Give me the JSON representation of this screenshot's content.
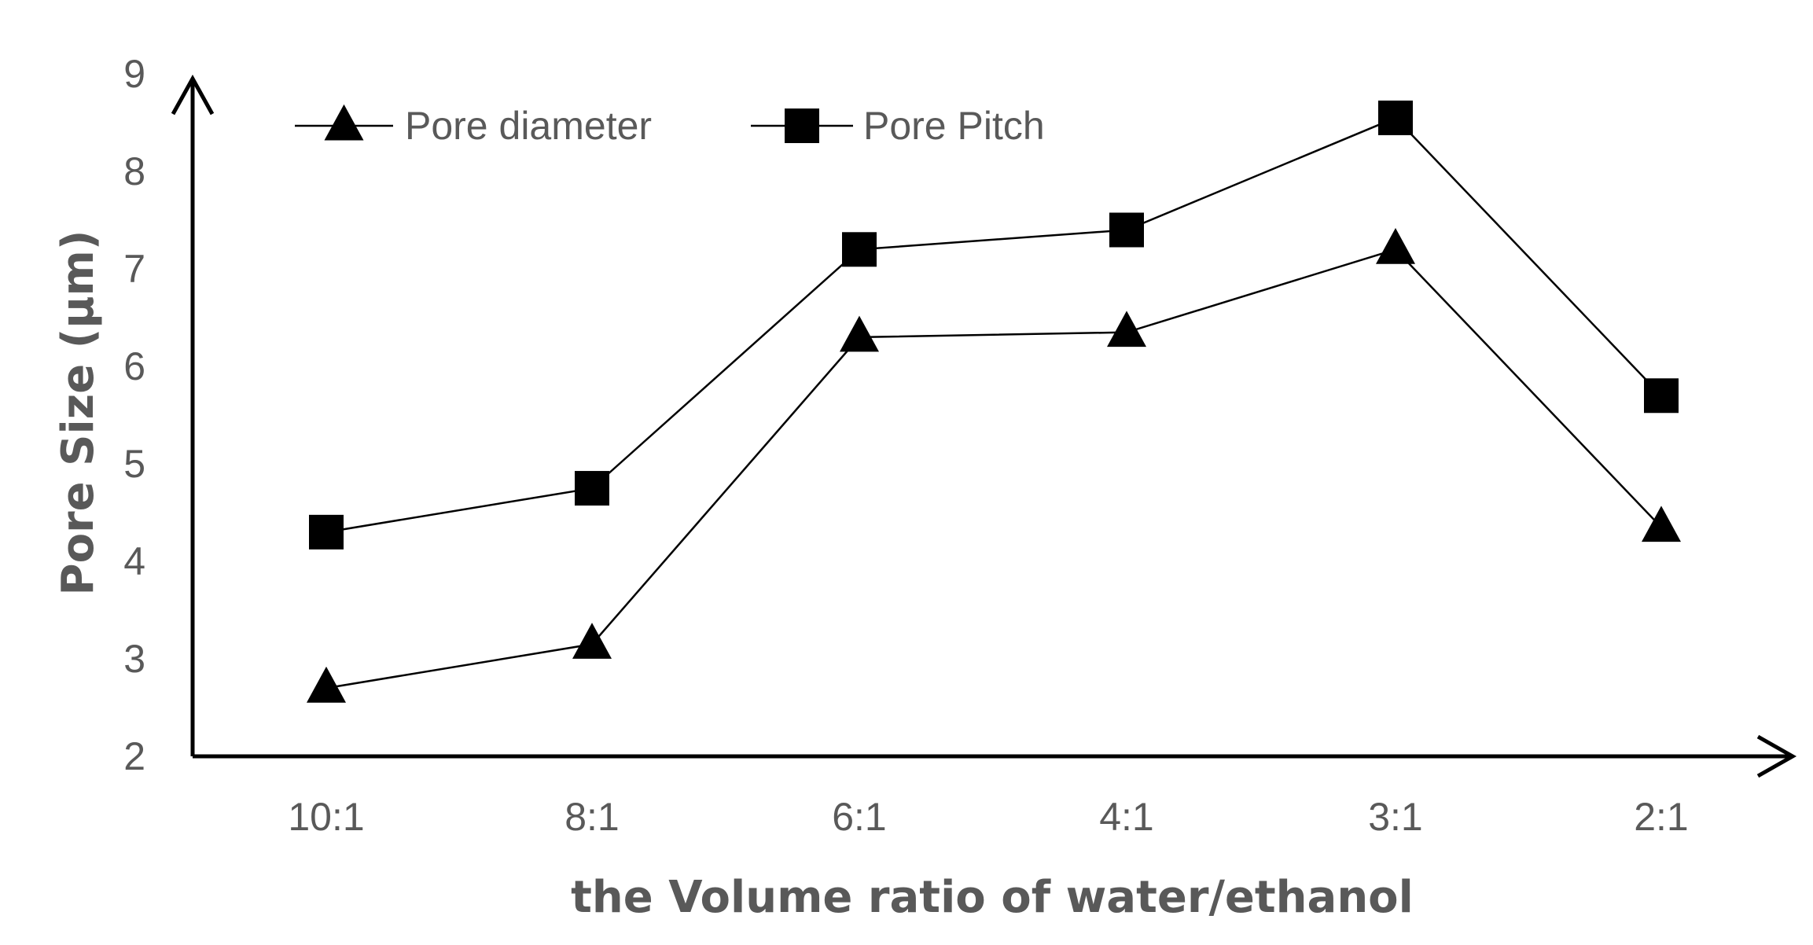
{
  "chart_data": {
    "type": "line",
    "title": "",
    "xlabel": "the Volume ratio of water/ethanol",
    "ylabel": "Pore Size (μm)",
    "categories": [
      "10:1",
      "8:1",
      "6:1",
      "4:1",
      "3:1",
      "2:1"
    ],
    "ylim": [
      2,
      9
    ],
    "yticks": [
      "2",
      "3",
      "4",
      "5",
      "6",
      "7",
      "8",
      "9"
    ],
    "grid": false,
    "legend_position": "top-left",
    "series": [
      {
        "name": "Pore diameter",
        "marker": "triangle",
        "values": [
          2.7,
          3.15,
          6.3,
          6.35,
          7.2,
          4.35
        ]
      },
      {
        "name": "Pore Pitch",
        "marker": "square",
        "values": [
          4.3,
          4.75,
          7.2,
          7.4,
          8.55,
          5.7
        ]
      }
    ],
    "colors": {
      "line": "#000000",
      "marker": "#000000",
      "axis": "#000000",
      "text": "#595959"
    }
  }
}
